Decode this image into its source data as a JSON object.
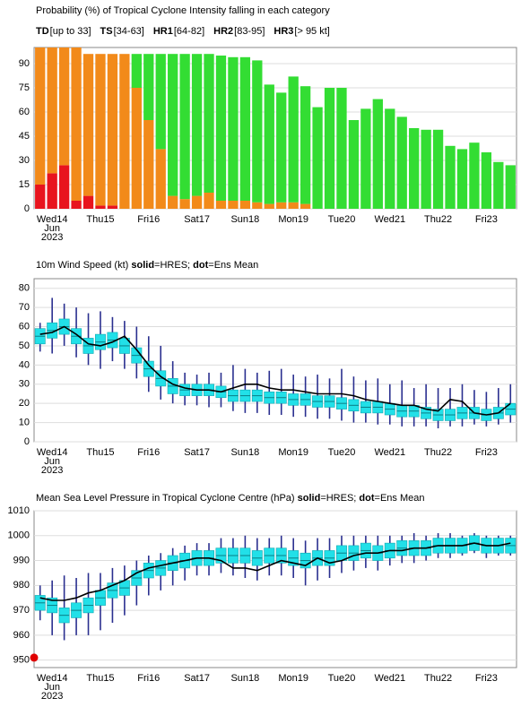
{
  "chart_data": [
    {
      "type": "bar",
      "title": "Probability (%) of Tropical Cyclone Intensity falling in each category",
      "categories": [
        null,
        "Wed14",
        null,
        null,
        null,
        "Thu15",
        null,
        null,
        null,
        "Fri16",
        null,
        null,
        null,
        "Sat17",
        null,
        null,
        null,
        "Sun18",
        null,
        null,
        null,
        "Mon19",
        null,
        null,
        null,
        "Tue20",
        null,
        null,
        null,
        "Wed21",
        null,
        null,
        null,
        "Thu22",
        null,
        null,
        null,
        "Fri23",
        null,
        null
      ],
      "x_sublabels": [
        "Jun",
        "2023"
      ],
      "highlight": {
        "index": 17,
        "color": "#e00000"
      },
      "ylim": [
        0,
        100
      ],
      "yticks": [
        0,
        15,
        30,
        45,
        60,
        75,
        90
      ],
      "grid": true,
      "series": [
        {
          "name": "HR1",
          "range": "[64-82]",
          "color": "#e8141e",
          "values": [
            15,
            22,
            27,
            5,
            8,
            2,
            2,
            0,
            0,
            0,
            0,
            0,
            0,
            0,
            0,
            0,
            0,
            0,
            0,
            0,
            0,
            0,
            0,
            0,
            0,
            0,
            0,
            0,
            0,
            0,
            0,
            0,
            0,
            0,
            0,
            0,
            0,
            0,
            0,
            0
          ]
        },
        {
          "name": "TS",
          "range": "[34-63]",
          "color": "#f28a1a",
          "values": [
            85,
            78,
            73,
            95,
            88,
            94,
            94,
            96,
            75,
            55,
            37,
            8,
            6,
            8,
            10,
            5,
            5,
            5,
            4,
            3,
            4,
            4,
            3,
            0,
            0,
            0,
            0,
            0,
            0,
            0,
            0,
            0,
            0,
            0,
            0,
            0,
            0,
            0,
            0,
            0
          ]
        },
        {
          "name": "TD",
          "range": "[up to 33]",
          "color": "#33dd33",
          "values": [
            0,
            0,
            0,
            0,
            0,
            0,
            0,
            0,
            21,
            41,
            59,
            88,
            90,
            88,
            86,
            90,
            89,
            89,
            88,
            74,
            68,
            78,
            73,
            63,
            75,
            75,
            55,
            62,
            68,
            62,
            57,
            50,
            49,
            49,
            39,
            37,
            41,
            35,
            29,
            27
          ]
        },
        {
          "name": "HR2",
          "range": "[83-95]",
          "color": "#b00000",
          "values": [
            0,
            0,
            0,
            0,
            0,
            0,
            0,
            0,
            0,
            0,
            0,
            0,
            0,
            0,
            0,
            0,
            0,
            0,
            0,
            0,
            0,
            0,
            0,
            0,
            0,
            0,
            0,
            0,
            0,
            0,
            0,
            0,
            0,
            0,
            0,
            0,
            0,
            0,
            0,
            0
          ]
        },
        {
          "name": "HR3",
          "range": "[> 95 kt]",
          "color": "#000000",
          "values": [
            0,
            0,
            0,
            0,
            0,
            0,
            0,
            0,
            0,
            0,
            0,
            0,
            0,
            0,
            0,
            0,
            0,
            0,
            0,
            0,
            0,
            0,
            0,
            0,
            0,
            0,
            0,
            0,
            0,
            0,
            0,
            0,
            0,
            0,
            0,
            0,
            0,
            0,
            0,
            0
          ]
        }
      ],
      "legend_order": [
        2,
        1,
        0,
        3,
        4
      ]
    },
    {
      "type": "box",
      "title_parts": [
        {
          "text": "10m Wind Speed (kt) ",
          "bold": false
        },
        {
          "text": "solid",
          "bold": true
        },
        {
          "text": "=HRES; ",
          "bold": false
        },
        {
          "text": "dot",
          "bold": true
        },
        {
          "text": "=Ens Mean",
          "bold": false
        }
      ],
      "categories": [
        null,
        "Wed14",
        null,
        null,
        null,
        "Thu15",
        null,
        null,
        null,
        "Fri16",
        null,
        null,
        null,
        "Sat17",
        null,
        null,
        null,
        "Sun18",
        null,
        null,
        null,
        "Mon19",
        null,
        null,
        null,
        "Tue20",
        null,
        null,
        null,
        "Wed21",
        null,
        null,
        null,
        "Thu22",
        null,
        null,
        null,
        "Fri23",
        null,
        null
      ],
      "x_sublabels": [
        "Jun",
        "2023"
      ],
      "highlight": {
        "index": 17,
        "color": "#e00000"
      },
      "ylim": [
        0,
        85
      ],
      "yticks": [
        0,
        10,
        20,
        30,
        40,
        50,
        60,
        70,
        80
      ],
      "grid": true,
      "box_color": "#22e0e8",
      "whisker_color": "#2a2f8f",
      "hres_color": "#000000",
      "whisker_low": [
        47,
        46,
        50,
        44,
        40,
        38,
        42,
        38,
        33,
        26,
        22,
        20,
        19,
        19,
        18,
        18,
        16,
        15,
        15,
        14,
        14,
        13,
        13,
        12,
        12,
        11,
        10,
        10,
        9,
        9,
        8,
        8,
        8,
        7,
        8,
        8,
        9,
        8,
        9,
        10
      ],
      "box_low": [
        51,
        54,
        56,
        51,
        46,
        48,
        49,
        46,
        41,
        34,
        29,
        25,
        24,
        24,
        24,
        23,
        21,
        21,
        21,
        20,
        20,
        19,
        19,
        18,
        18,
        17,
        16,
        15,
        15,
        14,
        13,
        13,
        12,
        11,
        11,
        12,
        12,
        11,
        12,
        14
      ],
      "box_mid": [
        55,
        58,
        60,
        55,
        50,
        52,
        53,
        50,
        45,
        38,
        33,
        29,
        27,
        27,
        27,
        26,
        24,
        24,
        24,
        23,
        23,
        22,
        22,
        21,
        21,
        20,
        19,
        18,
        18,
        17,
        16,
        16,
        15,
        14,
        14,
        15,
        15,
        14,
        15,
        17
      ],
      "box_high": [
        59,
        62,
        64,
        59,
        54,
        56,
        57,
        54,
        49,
        42,
        37,
        33,
        30,
        30,
        30,
        29,
        27,
        27,
        27,
        26,
        26,
        25,
        25,
        24,
        24,
        23,
        22,
        21,
        21,
        20,
        19,
        19,
        18,
        17,
        17,
        18,
        18,
        17,
        18,
        20
      ],
      "whisker_high": [
        62,
        75,
        72,
        70,
        67,
        68,
        65,
        63,
        60,
        55,
        50,
        42,
        36,
        35,
        36,
        36,
        40,
        38,
        36,
        37,
        38,
        35,
        34,
        35,
        33,
        38,
        34,
        32,
        33,
        30,
        32,
        28,
        30,
        28,
        28,
        30,
        27,
        26,
        28,
        30
      ],
      "hres": [
        56,
        57,
        60,
        56,
        51,
        50,
        52,
        55,
        48,
        40,
        34,
        30,
        28,
        27,
        27,
        26,
        28,
        30,
        30,
        28,
        27,
        27,
        26,
        25,
        25,
        25,
        24,
        22,
        21,
        20,
        19,
        19,
        17,
        16,
        22,
        21,
        15,
        14,
        15,
        20
      ]
    },
    {
      "type": "box",
      "title_parts": [
        {
          "text": "Mean Sea Level Pressure in Tropical Cyclone Centre (hPa) ",
          "bold": false
        },
        {
          "text": "solid",
          "bold": true
        },
        {
          "text": "=HRES; ",
          "bold": false
        },
        {
          "text": "dot",
          "bold": true
        },
        {
          "text": "=Ens Mean",
          "bold": false
        }
      ],
      "categories": [
        null,
        "Wed14",
        null,
        null,
        null,
        "Thu15",
        null,
        null,
        null,
        "Fri16",
        null,
        null,
        null,
        "Sat17",
        null,
        null,
        null,
        "Sun18",
        null,
        null,
        null,
        "Mon19",
        null,
        null,
        null,
        "Tue20",
        null,
        null,
        null,
        "Wed21",
        null,
        null,
        null,
        "Thu22",
        null,
        null,
        null,
        "Fri23",
        null,
        null
      ],
      "x_sublabels": [
        "Jun",
        "2023"
      ],
      "highlight": {
        "index": 17,
        "color": "#e00000"
      },
      "ylim": [
        947,
        1010
      ],
      "yticks": [
        950,
        960,
        970,
        980,
        990,
        1000,
        1010
      ],
      "grid": true,
      "box_color": "#22e0e8",
      "whisker_color": "#2a2f8f",
      "hres_color": "#000000",
      "whisker_low": [
        966,
        960,
        958,
        960,
        960,
        962,
        965,
        968,
        972,
        976,
        978,
        980,
        982,
        984,
        984,
        985,
        984,
        983,
        982,
        984,
        984,
        983,
        980,
        982,
        983,
        985,
        986,
        987,
        986,
        988,
        989,
        989,
        990,
        991,
        991,
        992,
        993,
        991,
        992,
        992
      ],
      "box_low": [
        970,
        969,
        965,
        967,
        969,
        972,
        975,
        976,
        980,
        983,
        984,
        986,
        987,
        988,
        988,
        989,
        989,
        989,
        988,
        989,
        989,
        988,
        987,
        988,
        988,
        990,
        990,
        991,
        990,
        991,
        992,
        992,
        992,
        993,
        993,
        993,
        994,
        993,
        993,
        993
      ],
      "box_mid": [
        973,
        972,
        968,
        970,
        972,
        975,
        978,
        979,
        983,
        986,
        987,
        989,
        990,
        991,
        991,
        992,
        992,
        992,
        991,
        992,
        992,
        991,
        990,
        991,
        991,
        993,
        993,
        994,
        993,
        994,
        995,
        995,
        995,
        996,
        996,
        996,
        997,
        996,
        996,
        996
      ],
      "box_high": [
        976,
        975,
        971,
        973,
        975,
        978,
        981,
        982,
        986,
        989,
        990,
        992,
        993,
        994,
        994,
        995,
        995,
        995,
        994,
        995,
        995,
        994,
        993,
        994,
        994,
        996,
        996,
        997,
        996,
        997,
        998,
        998,
        998,
        999,
        999,
        999,
        1000,
        999,
        999,
        999
      ],
      "whisker_high": [
        980,
        982,
        984,
        983,
        985,
        985,
        987,
        988,
        990,
        992,
        993,
        995,
        996,
        997,
        997,
        999,
        999,
        1000,
        999,
        999,
        1000,
        999,
        998,
        999,
        999,
        1000,
        1000,
        1000,
        1000,
        1000,
        1000,
        1001,
        1000,
        1001,
        1001,
        1000,
        1001,
        1000,
        1000,
        1000
      ],
      "hres": [
        975,
        974,
        974,
        975,
        977,
        978,
        980,
        982,
        985,
        987,
        988,
        989,
        990,
        991,
        991,
        990,
        987,
        987,
        986,
        988,
        990,
        989,
        988,
        991,
        989,
        990,
        992,
        993,
        993,
        994,
        994,
        995,
        995,
        996,
        996,
        996,
        997,
        996,
        996,
        997
      ],
      "observed": {
        "index": 0,
        "value": 951,
        "color": "#e00000"
      }
    }
  ]
}
